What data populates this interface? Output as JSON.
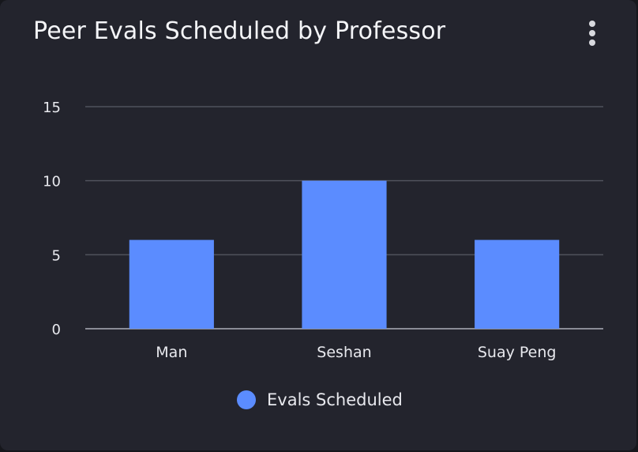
{
  "card": {
    "title": "Peer Evals Scheduled by Professor",
    "menu_icon": "more-vertical-icon"
  },
  "colors": {
    "background": "#23242d",
    "bar": "#5b8cff",
    "grid": "#50525c",
    "text": "#e8e9ee"
  },
  "chart_data": {
    "type": "bar",
    "categories": [
      "Man",
      "Seshan",
      "Suay Peng"
    ],
    "series": [
      {
        "name": "Evals Scheduled",
        "values": [
          6,
          10,
          6
        ]
      }
    ],
    "ylim": [
      0,
      15
    ],
    "yticks": [
      "0",
      "5",
      "10",
      "15"
    ],
    "grid": true,
    "legend": "bottom-center"
  }
}
